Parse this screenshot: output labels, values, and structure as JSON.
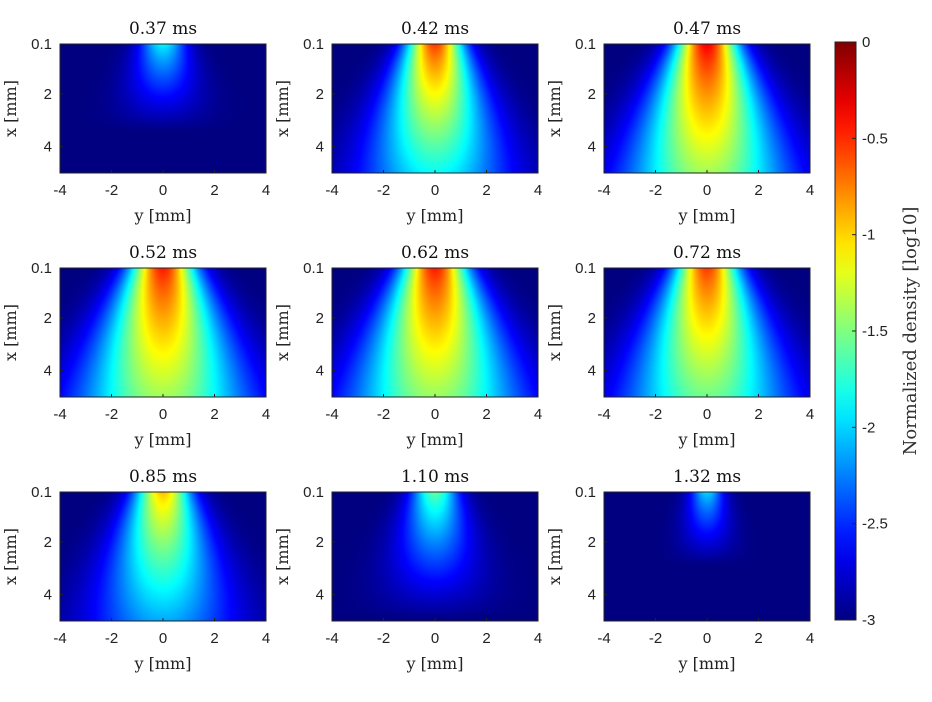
{
  "chart_data": {
    "type": "heatmap",
    "colormap": "jet",
    "xlabel": "y [mm]",
    "ylabel": "x [mm]",
    "x_ticks": [
      "-4",
      "-2",
      "0",
      "2",
      "4"
    ],
    "y_ticks": [
      "0.1",
      "2",
      "4"
    ],
    "xlim": [
      -4,
      4
    ],
    "ylim": [
      0.1,
      5
    ],
    "panels": [
      {
        "title": "0.37 ms",
        "peak": -1.9,
        "width": 0.42,
        "spread": 0.3
      },
      {
        "title": "0.42 ms",
        "peak": -0.55,
        "width": 0.5,
        "spread": 0.55
      },
      {
        "title": "0.47 ms",
        "peak": -0.35,
        "width": 0.55,
        "spread": 0.85
      },
      {
        "title": "0.52 ms",
        "peak": -0.45,
        "width": 0.58,
        "spread": 0.95
      },
      {
        "title": "0.62 ms",
        "peak": -0.45,
        "width": 0.58,
        "spread": 0.92
      },
      {
        "title": "0.72 ms",
        "peak": -0.55,
        "width": 0.56,
        "spread": 0.9
      },
      {
        "title": "0.85 ms",
        "peak": -0.95,
        "width": 0.5,
        "spread": 0.7
      },
      {
        "title": "1.10 ms",
        "peak": -1.6,
        "width": 0.42,
        "spread": 0.45
      },
      {
        "title": "1.32 ms",
        "peak": -2.0,
        "width": 0.3,
        "spread": 0.2
      }
    ],
    "colorbar": {
      "label": "Normalized density [log10]",
      "range": [
        -3,
        0
      ],
      "ticks": [
        "0",
        "-0.5",
        "-1",
        "-1.5",
        "-2",
        "-2.5",
        "-3"
      ]
    }
  }
}
